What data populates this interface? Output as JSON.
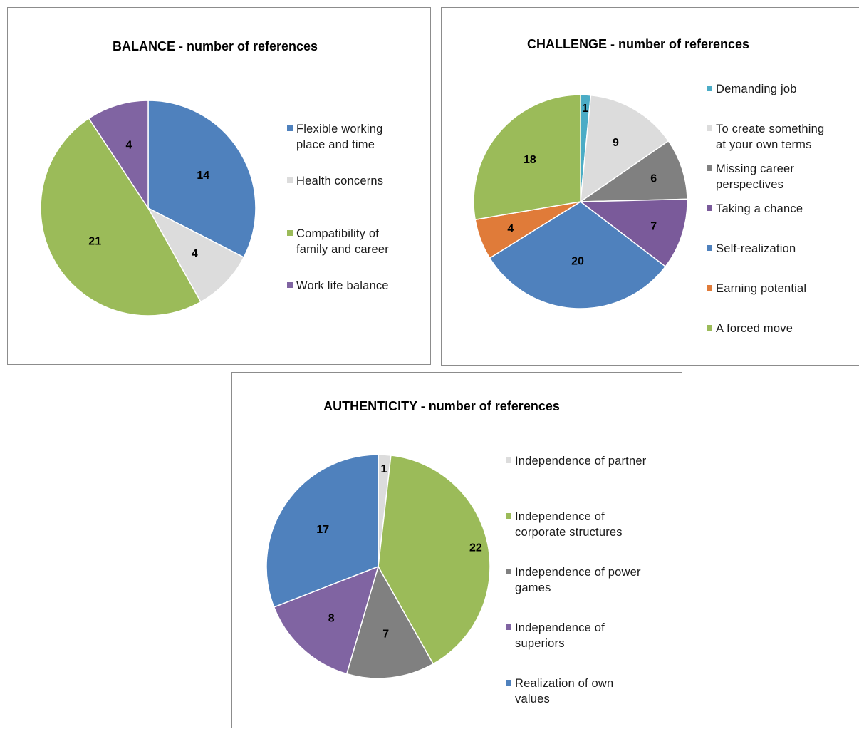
{
  "chart_data": [
    {
      "type": "pie",
      "title": "BALANCE  - number of references",
      "categories": [
        "Flexible working place and time",
        "Health concerns",
        "Compatibility of family and career",
        "Work life balance"
      ],
      "legend_lines": [
        [
          "Flexible working",
          "place and time"
        ],
        [
          "Health concerns"
        ],
        [
          "Compatibility of",
          "family and career"
        ],
        [
          "Work life balance"
        ]
      ],
      "values": [
        14,
        4,
        21,
        4
      ],
      "colors": [
        "#4f81bd",
        "#dcdcdc",
        "#9bbb59",
        "#8064a2"
      ],
      "data_labels": true,
      "legend_position": "right"
    },
    {
      "type": "pie",
      "title": "CHALLENGE  - number of references",
      "categories": [
        "Demanding job",
        "To create something at your own terms",
        "Missing career perspectives",
        "Taking a chance",
        "Self-realization",
        "Earning potential",
        "A forced move"
      ],
      "legend_lines": [
        [
          "Demanding job"
        ],
        [
          "To create something",
          "at your own terms"
        ],
        [
          "Missing career",
          "perspectives"
        ],
        [
          "Taking a chance"
        ],
        [
          "Self-realization"
        ],
        [
          "Earning potential"
        ],
        [
          "A forced move"
        ]
      ],
      "values": [
        1,
        9,
        6,
        7,
        20,
        4,
        18
      ],
      "colors": [
        "#4bacc6",
        "#dcdcdc",
        "#808080",
        "#7a5a9a",
        "#4f81bd",
        "#e07b39",
        "#9bbb59"
      ],
      "data_labels": true,
      "legend_position": "right"
    },
    {
      "type": "pie",
      "title": "AUTHENTICITY  - number of references",
      "categories": [
        "Independence of partner",
        "Independence of corporate structures",
        "Independence of power games",
        "Independence of superiors",
        "Realization of own values"
      ],
      "legend_lines": [
        [
          "Independence of partner"
        ],
        [
          "Independence of",
          "corporate structures"
        ],
        [
          "Independence of power",
          "games"
        ],
        [
          "Independence of",
          "superiors"
        ],
        [
          "Realization of own",
          "values"
        ]
      ],
      "values": [
        1,
        22,
        7,
        8,
        17
      ],
      "colors": [
        "#dcdcdc",
        "#9bbb59",
        "#808080",
        "#8064a2",
        "#4f81bd"
      ],
      "data_labels": true,
      "legend_position": "right"
    }
  ]
}
